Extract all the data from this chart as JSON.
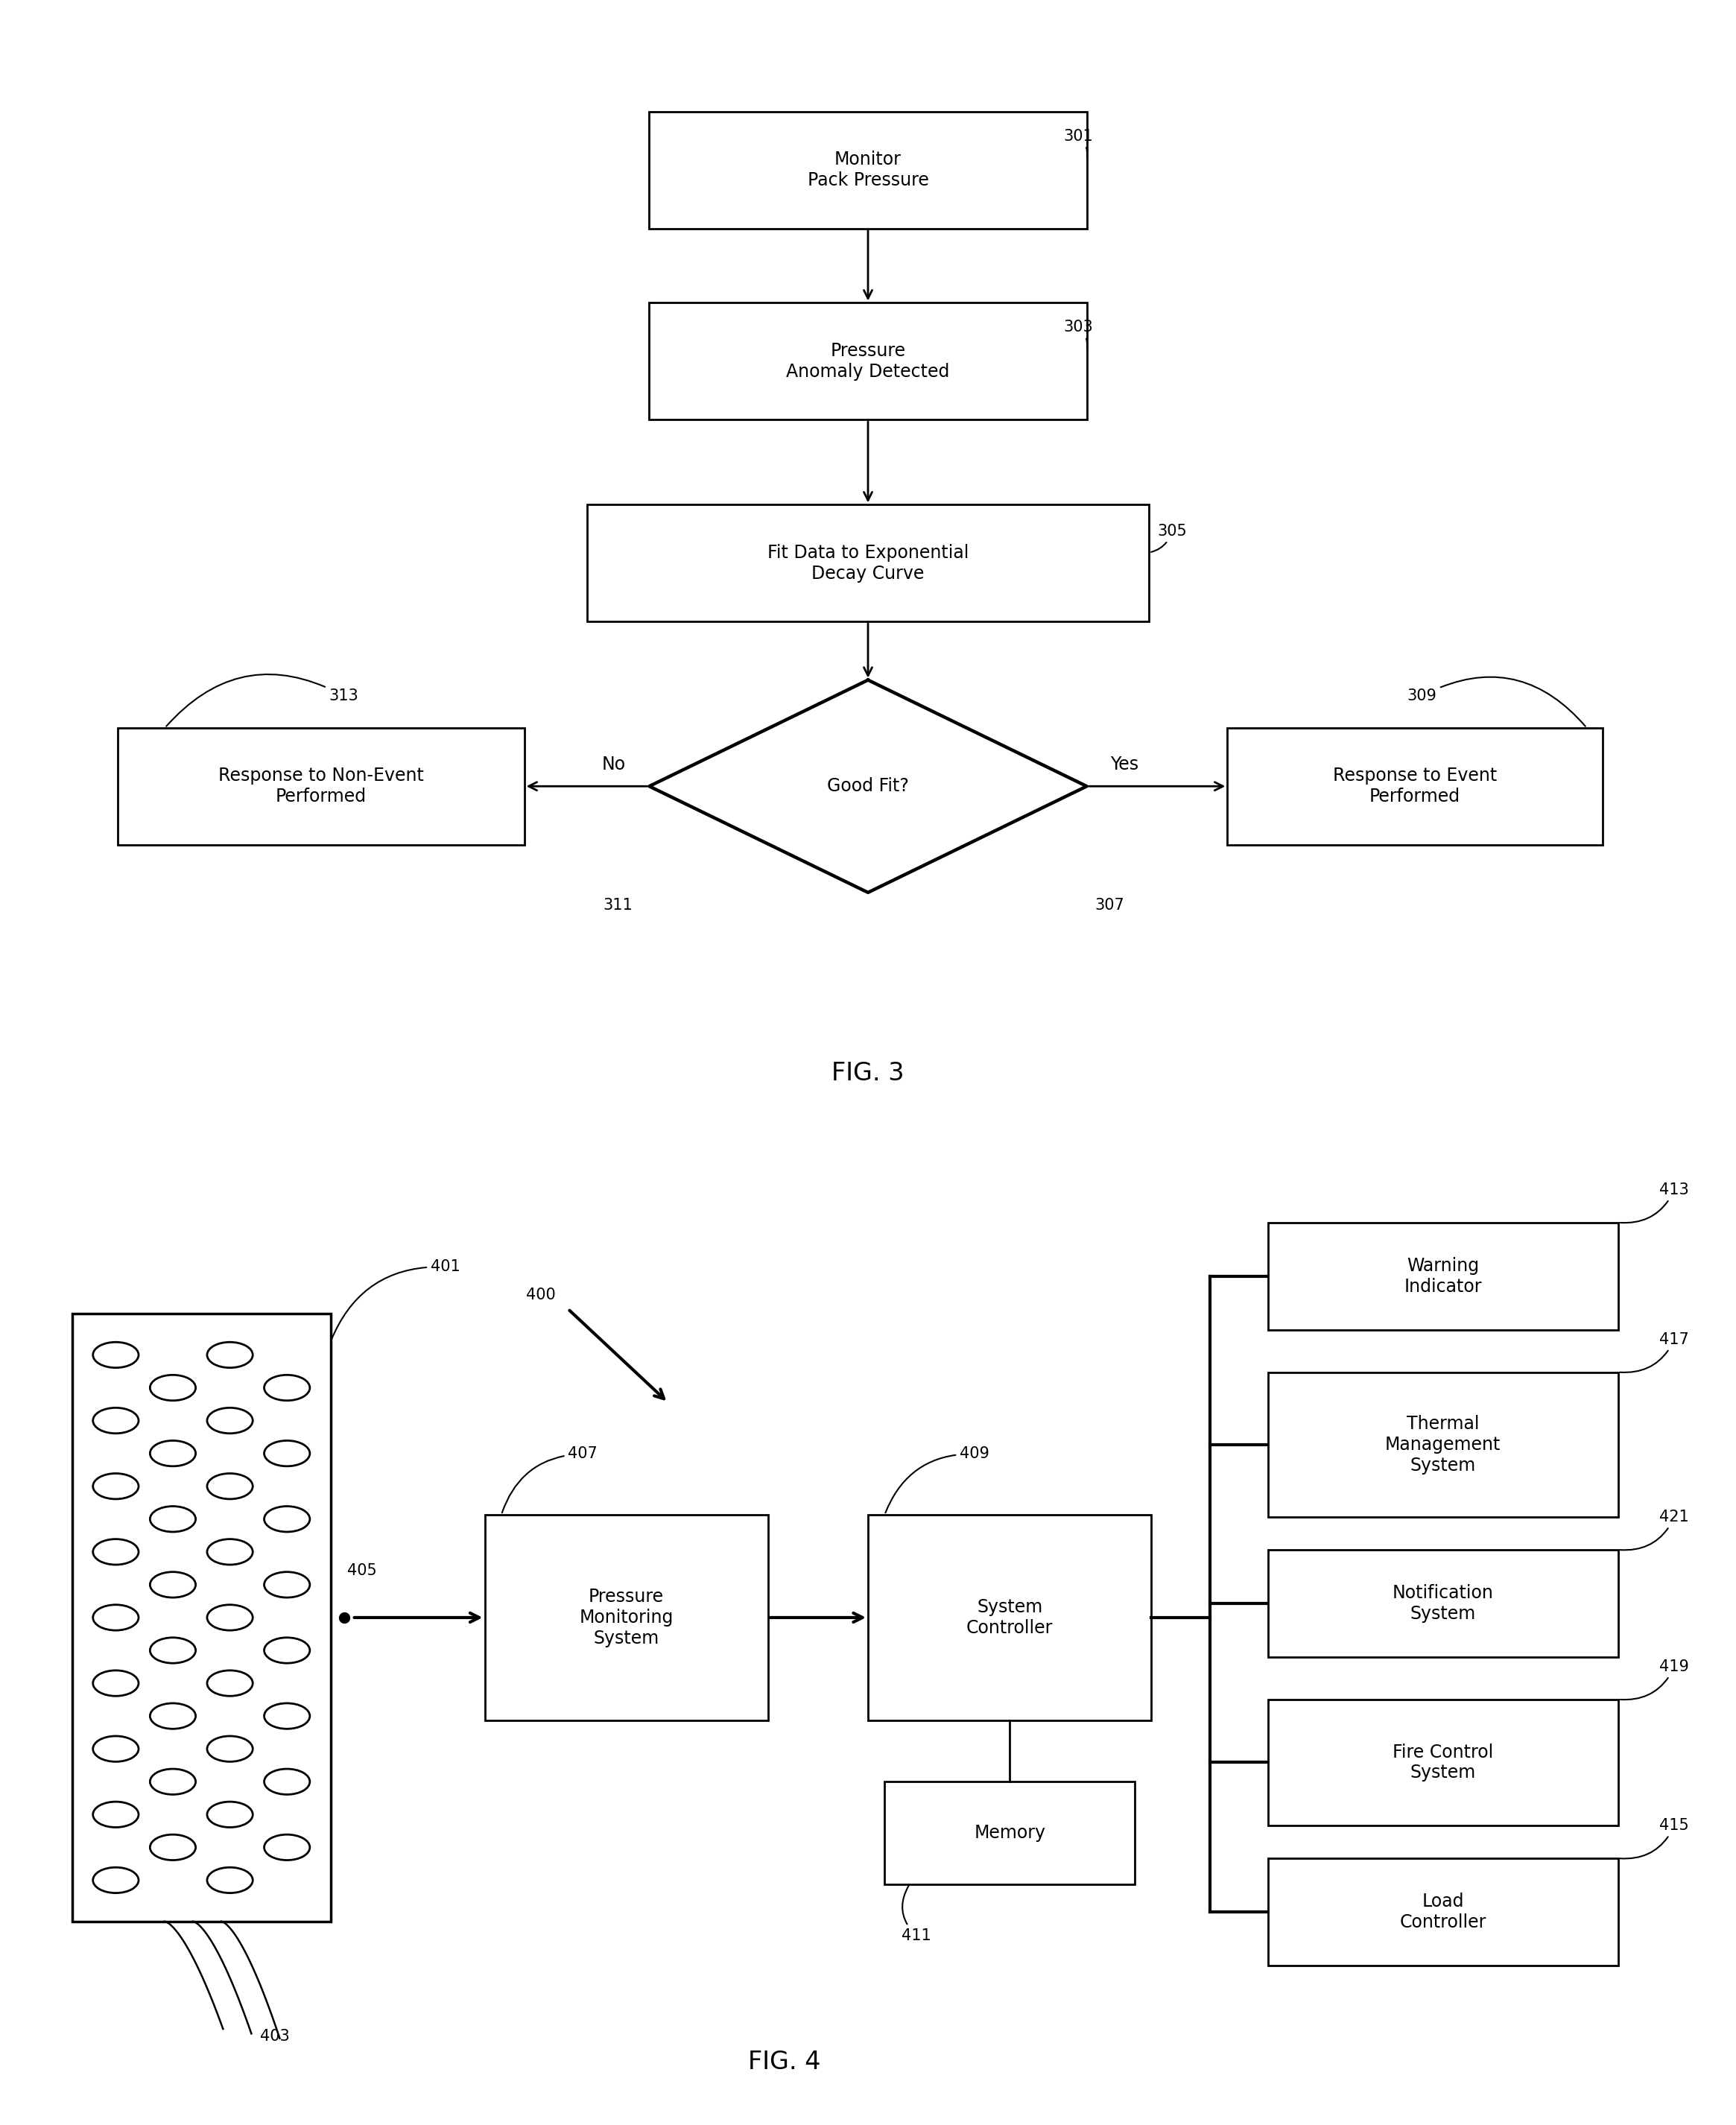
{
  "fig3": {
    "title": "FIG. 3",
    "monitor_text": "Monitor\nPack Pressure",
    "anomaly_text": "Pressure\nAnomaly Detected",
    "fit_text": "Fit Data to Exponential\nDecay Curve",
    "diamond_text": "Good Fit?",
    "nonevent_text": "Response to Non-Event\nPerformed",
    "event_text": "Response to Event\nPerformed",
    "label_301": "301",
    "label_303": "303",
    "label_305": "305",
    "label_307": "307",
    "label_309": "309",
    "label_311": "311",
    "label_313": "313",
    "no_text": "No",
    "yes_text": "Yes"
  },
  "fig4": {
    "title": "FIG. 4",
    "label_400": "400",
    "label_401": "401",
    "label_403": "403",
    "label_405": "405",
    "label_407": "407",
    "label_409": "409",
    "label_411": "411",
    "label_413": "413",
    "label_415": "415",
    "label_417": "417",
    "label_419": "419",
    "label_421": "421",
    "pms_text": "Pressure\nMonitoring\nSystem",
    "sc_text": "System\nController",
    "mem_text": "Memory",
    "warning_text": "Warning\nIndicator",
    "thermal_text": "Thermal\nManagement\nSystem",
    "notification_text": "Notification\nSystem",
    "fire_text": "Fire Control\nSystem",
    "load_text": "Load\nController"
  }
}
